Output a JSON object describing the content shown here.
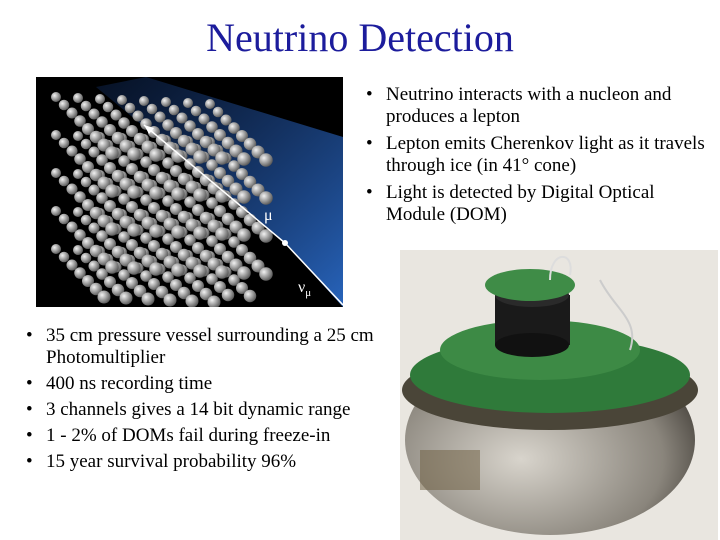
{
  "title": "Neutrino Detection",
  "diagram": {
    "muon_label": "μ",
    "neutrino_label": "ν",
    "neutrino_subscript": "μ"
  },
  "top_bullets": [
    "Neutrino interacts with a nucleon and produces a lepton",
    "Lepton emits Cherenkov light as it travels through ice (in 41° cone)",
    "Light is detected by Digital Optical Module (DOM)"
  ],
  "bottom_bullets": [
    "35 cm pressure vessel surrounding a 25 cm Photomultiplier",
    "400 ns recording time",
    "3 channels gives a 14 bit dynamic range",
    "1 - 2% of DOMs fail during freeze-in",
    "15 year survival probability 96%"
  ]
}
